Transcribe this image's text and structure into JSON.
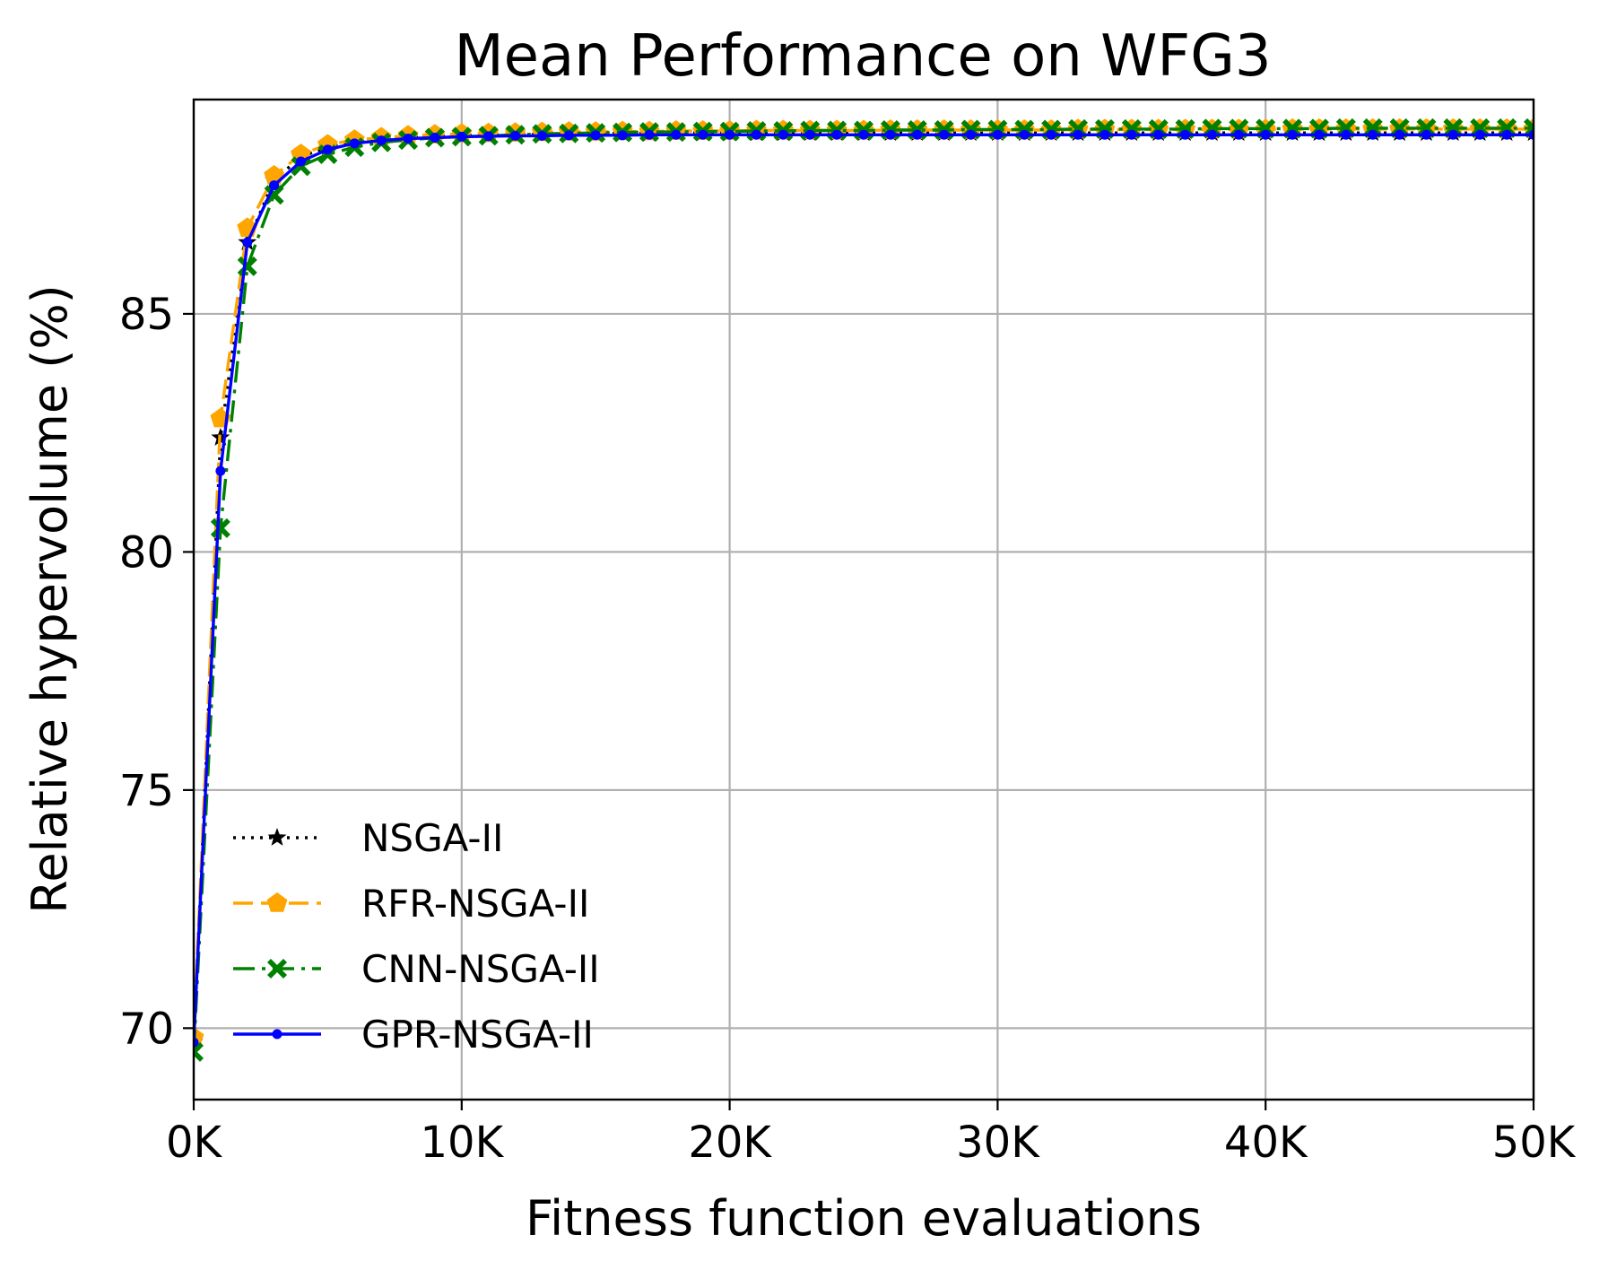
{
  "chart_data": {
    "type": "line",
    "title": "Mean Performance on WFG3",
    "xlabel": "Fitness function evaluations",
    "ylabel": "Relative hypervolume (%)",
    "xlim": [
      0,
      50000
    ],
    "ylim": [
      68.5,
      89.5
    ],
    "x_ticks": [
      0,
      10000,
      20000,
      30000,
      40000,
      50000
    ],
    "x_tick_labels": [
      "0K",
      "10K",
      "20K",
      "30K",
      "40K",
      "50K"
    ],
    "y_ticks": [
      70,
      75,
      80,
      85
    ],
    "y_tick_labels": [
      "70",
      "75",
      "80",
      "85"
    ],
    "grid": true,
    "legend_position": "lower-left",
    "x": [
      0,
      1000,
      2000,
      3000,
      4000,
      5000,
      6000,
      7000,
      8000,
      9000,
      10000,
      11000,
      12000,
      13000,
      14000,
      15000,
      16000,
      17000,
      18000,
      19000,
      20000,
      21000,
      22000,
      23000,
      24000,
      25000,
      26000,
      27000,
      28000,
      29000,
      30000,
      31000,
      32000,
      33000,
      34000,
      35000,
      36000,
      37000,
      38000,
      39000,
      40000,
      41000,
      42000,
      43000,
      44000,
      45000,
      46000,
      47000,
      48000,
      49000,
      50000
    ],
    "series": [
      {
        "name": "NSGA-II",
        "color": "#000000",
        "line_style": "dotted",
        "marker": "star",
        "values": [
          69.7,
          82.4,
          86.5,
          87.8,
          88.3,
          88.5,
          88.6,
          88.65,
          88.7,
          88.72,
          88.74,
          88.75,
          88.76,
          88.77,
          88.78,
          88.78,
          88.79,
          88.79,
          88.8,
          88.8,
          88.8,
          88.8,
          88.8,
          88.8,
          88.8,
          88.8,
          88.8,
          88.8,
          88.8,
          88.8,
          88.8,
          88.8,
          88.8,
          88.8,
          88.8,
          88.8,
          88.8,
          88.8,
          88.8,
          88.8,
          88.8,
          88.8,
          88.8,
          88.8,
          88.8,
          88.8,
          88.8,
          88.8,
          88.8,
          88.8,
          88.8
        ]
      },
      {
        "name": "RFR-NSGA-II",
        "color": "#ffa500",
        "line_style": "dashed",
        "marker": "pentagon",
        "values": [
          69.8,
          82.8,
          86.8,
          87.9,
          88.35,
          88.55,
          88.65,
          88.7,
          88.74,
          88.76,
          88.78,
          88.79,
          88.8,
          88.81,
          88.82,
          88.82,
          88.83,
          88.83,
          88.84,
          88.84,
          88.84,
          88.85,
          88.85,
          88.85,
          88.85,
          88.85,
          88.86,
          88.86,
          88.86,
          88.86,
          88.86,
          88.86,
          88.86,
          88.87,
          88.87,
          88.87,
          88.87,
          88.87,
          88.87,
          88.87,
          88.87,
          88.88,
          88.88,
          88.88,
          88.88,
          88.88,
          88.88,
          88.88,
          88.88,
          88.88,
          88.88
        ]
      },
      {
        "name": "CNN-NSGA-II",
        "color": "#008000",
        "line_style": "dashdot",
        "marker": "x-filled",
        "values": [
          69.5,
          80.5,
          86.0,
          87.5,
          88.1,
          88.35,
          88.5,
          88.6,
          88.65,
          88.7,
          88.72,
          88.74,
          88.76,
          88.78,
          88.79,
          88.8,
          88.81,
          88.82,
          88.82,
          88.83,
          88.83,
          88.84,
          88.84,
          88.85,
          88.85,
          88.85,
          88.86,
          88.86,
          88.86,
          88.87,
          88.87,
          88.87,
          88.87,
          88.88,
          88.88,
          88.88,
          88.88,
          88.88,
          88.89,
          88.89,
          88.89,
          88.89,
          88.89,
          88.9,
          88.9,
          88.9,
          88.9,
          88.9,
          88.9,
          88.9,
          88.9
        ]
      },
      {
        "name": "GPR-NSGA-II",
        "color": "#0000ff",
        "line_style": "solid",
        "marker": "point",
        "values": [
          69.7,
          81.7,
          86.5,
          87.7,
          88.2,
          88.45,
          88.58,
          88.64,
          88.68,
          88.7,
          88.72,
          88.73,
          88.74,
          88.74,
          88.75,
          88.75,
          88.75,
          88.76,
          88.76,
          88.76,
          88.76,
          88.76,
          88.76,
          88.76,
          88.76,
          88.76,
          88.76,
          88.76,
          88.76,
          88.76,
          88.76,
          88.76,
          88.76,
          88.76,
          88.76,
          88.76,
          88.76,
          88.76,
          88.76,
          88.76,
          88.76,
          88.76,
          88.76,
          88.76,
          88.76,
          88.76,
          88.76,
          88.76,
          88.76,
          88.76,
          88.76
        ]
      }
    ]
  }
}
